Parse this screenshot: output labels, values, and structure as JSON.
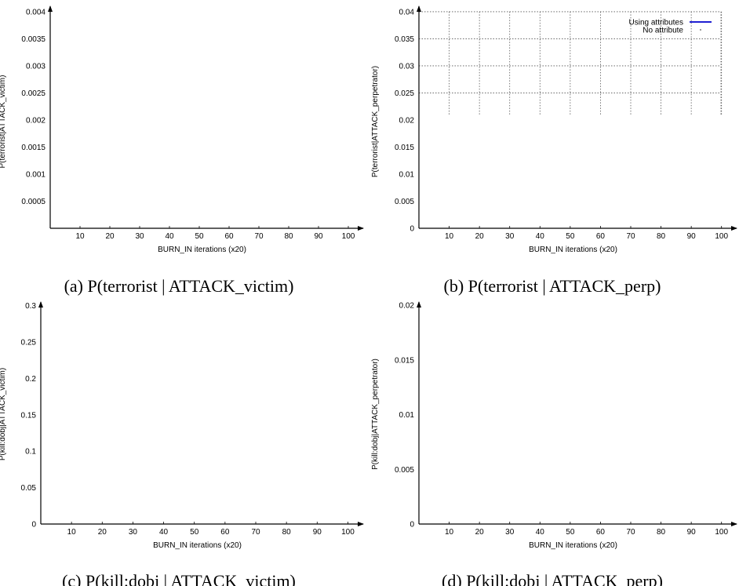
{
  "chart_data": [
    {
      "type": "line",
      "caption": "(a) P(terrorist | ATTACK_victim)",
      "xlabel": "BURN_IN iterations (x20)",
      "ylabel": "P(terrorist|ATTACK_victim)",
      "xlim": [
        0,
        105
      ],
      "ylim": [
        0,
        0.0041
      ],
      "xticks": [
        10,
        20,
        30,
        40,
        50,
        60,
        70,
        80,
        90,
        100
      ],
      "yticks": [
        0.0005,
        0.001,
        0.0015,
        0.002,
        0.0025,
        0.003,
        0.0035,
        0.004
      ],
      "ytick_labels": [
        "0.0005",
        "0.001",
        "0.0015",
        "0.002",
        "0.0025",
        "0.003",
        "0.0035",
        "0.004"
      ],
      "grid": false,
      "legend": null,
      "series": []
    },
    {
      "type": "line",
      "caption": "(b) P(terrorist | ATTACK_perp)",
      "xlabel": "BURN_IN iterations (x20)",
      "ylabel": "P(terrorist|ATTACK_perpetrator)",
      "xlim": [
        0,
        105
      ],
      "ylim": [
        0,
        0.041
      ],
      "xticks": [
        10,
        20,
        30,
        40,
        50,
        60,
        70,
        80,
        90,
        100
      ],
      "yticks": [
        0,
        0.005,
        0.01,
        0.015,
        0.02,
        0.025,
        0.03,
        0.035,
        0.04
      ],
      "ytick_labels": [
        "0",
        "0.005",
        "0.01",
        "0.015",
        "0.02",
        "0.025",
        "0.03",
        "0.035",
        "0.04"
      ],
      "grid": true,
      "grid_from_y": 0.021,
      "legend": "top-right",
      "legend_entries": [
        "Using attributes",
        "No attribute"
      ],
      "series": [
        {
          "name": "Using attributes",
          "color": "#0000cc",
          "style": "line",
          "values": []
        },
        {
          "name": "No attribute",
          "color": "#555555",
          "style": "points",
          "values": []
        }
      ]
    },
    {
      "type": "line",
      "caption": "(c) P(kill:dobj | ATTACK_victim)",
      "xlabel": "BURN_IN iterations (x20)",
      "ylabel": "P(kill:dobj|ATTACK_victim)",
      "xlim": [
        0,
        105
      ],
      "ylim": [
        0,
        0.305
      ],
      "xticks": [
        10,
        20,
        30,
        40,
        50,
        60,
        70,
        80,
        90,
        100
      ],
      "yticks": [
        0,
        0.05,
        0.1,
        0.15,
        0.2,
        0.25,
        0.3
      ],
      "ytick_labels": [
        "0",
        "0.05",
        "0.1",
        "0.15",
        "0.2",
        "0.25",
        "0.3"
      ],
      "grid": false,
      "legend": null,
      "series": []
    },
    {
      "type": "line",
      "caption": "(d) P(kill:dobj | ATTACK_perp)",
      "xlabel": "BURN_IN iterations (x20)",
      "ylabel": "P(kill:dobj|ATTACK_perpetrator)",
      "xlim": [
        0,
        105
      ],
      "ylim": [
        0,
        0.0203
      ],
      "xticks": [
        10,
        20,
        30,
        40,
        50,
        60,
        70,
        80,
        90,
        100
      ],
      "yticks": [
        0,
        0.005,
        0.01,
        0.015,
        0.02
      ],
      "ytick_labels": [
        "0",
        "0.005",
        "0.01",
        "0.015",
        "0.02"
      ],
      "grid": false,
      "legend": null,
      "series": []
    }
  ]
}
